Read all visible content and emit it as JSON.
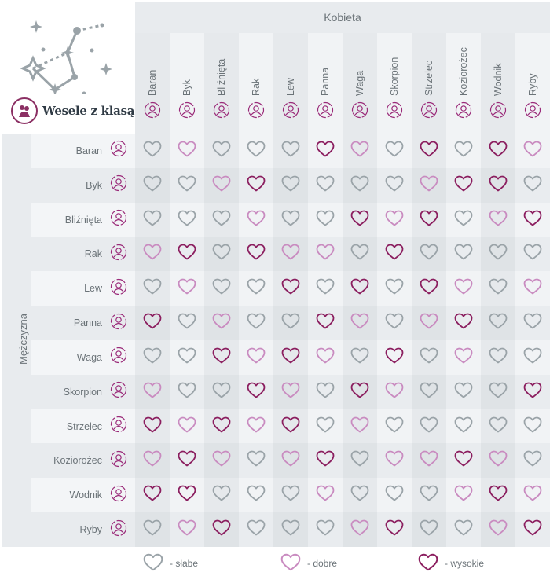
{
  "brand": {
    "name": "Wesele z klasą"
  },
  "axes": {
    "women_label": "Kobieta",
    "men_label": "Mężczyzna"
  },
  "colors": {
    "slabe": "#9aa3a8",
    "dobre": "#c98bc0",
    "wysokie": "#8b1e5f",
    "band_bg": "#e8ebee",
    "col_light": "#f1f3f5",
    "col_dark": "#e6e9ec",
    "icon": "#9a2a79"
  },
  "legend": [
    {
      "level": "s",
      "label": "- słabe"
    },
    {
      "level": "d",
      "label": "- dobre"
    },
    {
      "level": "w",
      "label": "- wysokie"
    }
  ],
  "chart_data": {
    "type": "heatmap",
    "title": "Zodiac compatibility (Kobieta × Mężczyzna)",
    "xlabel": "Kobieta",
    "ylabel": "Mężczyzna",
    "levels": {
      "s": "słabe",
      "d": "dobre",
      "w": "wysokie"
    },
    "columns": [
      "Baran",
      "Byk",
      "Bliźnięta",
      "Rak",
      "Lew",
      "Panna",
      "Waga",
      "Skorpion",
      "Strzelec",
      "Koziorożec",
      "Wodnik",
      "Ryby"
    ],
    "rows": [
      "Baran",
      "Byk",
      "Bliźnięta",
      "Rak",
      "Lew",
      "Panna",
      "Waga",
      "Skorpion",
      "Strzelec",
      "Koziorożec",
      "Wodnik",
      "Ryby"
    ],
    "values": [
      [
        "s",
        "d",
        "s",
        "s",
        "s",
        "w",
        "d",
        "s",
        "w",
        "s",
        "w",
        "d"
      ],
      [
        "s",
        "s",
        "d",
        "w",
        "s",
        "s",
        "s",
        "s",
        "d",
        "w",
        "w",
        "s"
      ],
      [
        "s",
        "s",
        "s",
        "d",
        "s",
        "s",
        "w",
        "d",
        "w",
        "s",
        "d",
        "w"
      ],
      [
        "d",
        "w",
        "s",
        "w",
        "d",
        "d",
        "s",
        "w",
        "s",
        "s",
        "s",
        "s"
      ],
      [
        "s",
        "d",
        "s",
        "s",
        "w",
        "s",
        "w",
        "s",
        "w",
        "d",
        "s",
        "d"
      ],
      [
        "w",
        "s",
        "d",
        "s",
        "s",
        "w",
        "d",
        "s",
        "d",
        "w",
        "s",
        "s"
      ],
      [
        "s",
        "s",
        "w",
        "d",
        "w",
        "d",
        "s",
        "w",
        "s",
        "d",
        "s",
        "s"
      ],
      [
        "d",
        "s",
        "s",
        "w",
        "d",
        "s",
        "w",
        "d",
        "s",
        "s",
        "s",
        "w"
      ],
      [
        "w",
        "d",
        "w",
        "d",
        "w",
        "s",
        "d",
        "s",
        "s",
        "s",
        "s",
        "s"
      ],
      [
        "d",
        "w",
        "d",
        "s",
        "d",
        "w",
        "s",
        "d",
        "d",
        "w",
        "d",
        "s"
      ],
      [
        "w",
        "w",
        "s",
        "s",
        "s",
        "d",
        "s",
        "s",
        "s",
        "d",
        "w",
        "d"
      ],
      [
        "s",
        "d",
        "w",
        "s",
        "s",
        "s",
        "d",
        "w",
        "s",
        "s",
        "d",
        "w"
      ]
    ]
  }
}
